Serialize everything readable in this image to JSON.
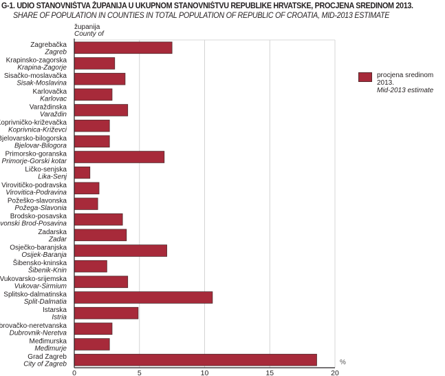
{
  "chart_data": {
    "type": "bar",
    "orientation": "horizontal",
    "title": "G-1. UDIO STANOVNIŠTVA ŽUPANIJA U UKUPNOM STANOVNIŠTVU REPUBLIKE HRVATSKE, PROCJENA SREDINOM 2013.",
    "subtitle": "SHARE OF POPULATION IN COUNTIES IN TOTAL POPULATION OF REPUBLIC OF CROATIA, MID-2013 ESTIMATE",
    "category_header": {
      "hr": "županija",
      "en": "County of"
    },
    "categories": [
      {
        "hr": "Zagrebačka",
        "en": "Zagreb"
      },
      {
        "hr": "Krapinsko-zagorska",
        "en": "Krapina-Zagorje"
      },
      {
        "hr": "Sisačko-moslavačka",
        "en": "Sisak-Moslavina"
      },
      {
        "hr": "Karlovačka",
        "en": "Karlovac"
      },
      {
        "hr": "Varaždinska",
        "en": "Varaždin"
      },
      {
        "hr": "Koprivničko-križevačka",
        "en": "Koprivnica-Križevci"
      },
      {
        "hr": "Bjelovarsko-bilogorska",
        "en": "Bjelovar-Bilogora"
      },
      {
        "hr": "Primorsko-goranska",
        "en": "Primorje-Gorski kotar"
      },
      {
        "hr": "Ličko-senjska",
        "en": "Lika-Senj"
      },
      {
        "hr": "Virovitičko-podravska",
        "en": "Virovitica-Podravina"
      },
      {
        "hr": "Požeško-slavonska",
        "en": "Požega-Slavonia"
      },
      {
        "hr": "Brodsko-posavska",
        "en": "Slavonski Brod-Posavina"
      },
      {
        "hr": "Zadarska",
        "en": "Zadar"
      },
      {
        "hr": "Osječko-baranjska",
        "en": "Osijek-Baranja"
      },
      {
        "hr": "Šibensko-kninska",
        "en": "Šibenik-Knin"
      },
      {
        "hr": "Vukovarsko-srijemska",
        "en": "Vukovar-Sirmium"
      },
      {
        "hr": "Splitsko-dalmatinska",
        "en": "Split-Dalmatia"
      },
      {
        "hr": "Istarska",
        "en": "Istria"
      },
      {
        "hr": "Dubrovačko-neretvanska",
        "en": "Dubrovnik-Neretva"
      },
      {
        "hr": "Međimurska",
        "en": "Međimurje"
      },
      {
        "hr": "Grad Zagreb",
        "en": "City of Zagreb"
      }
    ],
    "series": [
      {
        "name": "procjena sredinom 2013.",
        "name_en": "Mid-2013 estimate",
        "color": "#a72a3a",
        "values": [
          7.5,
          3.1,
          3.9,
          2.9,
          4.1,
          2.7,
          2.7,
          6.9,
          1.2,
          1.9,
          1.8,
          3.7,
          4.0,
          7.1,
          2.5,
          4.1,
          10.6,
          4.9,
          2.9,
          2.7,
          18.6
        ]
      }
    ],
    "xlabel": "%",
    "xlim": [
      0,
      20
    ],
    "xticks": [
      0,
      5,
      10,
      15,
      20
    ],
    "grid": true,
    "legend_position": "right"
  }
}
